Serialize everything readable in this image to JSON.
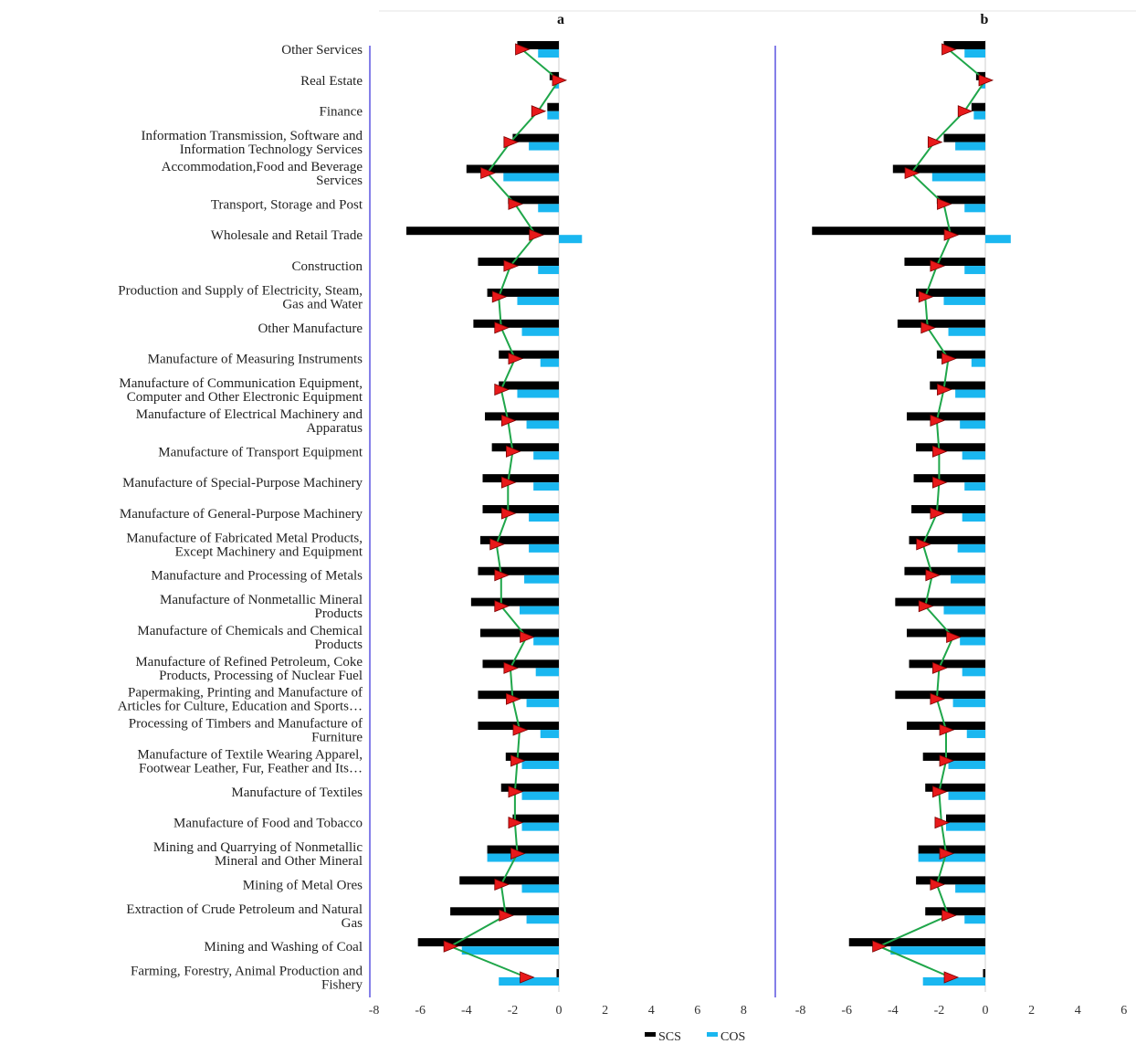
{
  "chart_data": {
    "type": "bar",
    "orientation": "horizontal",
    "categories": [
      "Other Services",
      "Real Estate",
      "Finance",
      "Information Transmission, Software and Information Technology Services",
      "Accommodation,Food and Beverage Services",
      "Transport, Storage and Post",
      "Wholesale and Retail Trade",
      "Construction",
      "Production and Supply of Electricity, Steam, Gas and Water",
      "Other Manufacture",
      "Manufacture of Measuring Instruments",
      "Manufacture of Communication Equipment, Computer and Other Electronic Equipment",
      "Manufacture of Electrical Machinery and Apparatus",
      "Manufacture of Transport Equipment",
      "Manufacture of Special-Purpose Machinery",
      "Manufacture of General-Purpose Machinery",
      "Manufacture of Fabricated Metal Products, Except Machinery and Equipment",
      "Manufacture and Processing of Metals",
      "Manufacture of Nonmetallic Mineral Products",
      "Manufacture of Chemicals and Chemical Products",
      "Manufacture of Refined Petroleum, Coke Products, Processing of Nuclear Fuel",
      "Papermaking, Printing and Manufacture of Articles for Culture, Education and Sports…",
      "Processing of Timbers and Manufacture of Furniture",
      "Manufacture of Textile Wearing Apparel, Footwear Leather, Fur, Feather and Its…",
      "Manufacture of Textiles",
      "Manufacture of Food and Tobacco",
      "Mining and Quarrying of Nonmetallic Mineral and Other Mineral",
      "Mining of Metal Ores",
      "Extraction of Crude Petroleum and Natural Gas",
      "Mining and Washing of Coal",
      "Farming, Forestry, Animal Production and Fishery"
    ],
    "category_lines": [
      [
        "Other Services"
      ],
      [
        "Real Estate"
      ],
      [
        "Finance"
      ],
      [
        "Information Transmission, Software and",
        "Information Technology Services"
      ],
      [
        "Accommodation,Food and Beverage",
        "Services"
      ],
      [
        "Transport, Storage and Post"
      ],
      [
        "Wholesale and Retail Trade"
      ],
      [
        "Construction"
      ],
      [
        "Production and Supply of Electricity, Steam,",
        "Gas and Water"
      ],
      [
        "Other Manufacture"
      ],
      [
        "Manufacture of Measuring Instruments"
      ],
      [
        "Manufacture of Communication Equipment,",
        "Computer and Other Electronic Equipment"
      ],
      [
        "Manufacture of Electrical Machinery and",
        "Apparatus"
      ],
      [
        "Manufacture of Transport Equipment"
      ],
      [
        "Manufacture of Special-Purpose Machinery"
      ],
      [
        "Manufacture of General-Purpose Machinery"
      ],
      [
        "Manufacture of Fabricated Metal Products,",
        "Except Machinery and Equipment"
      ],
      [
        "Manufacture and Processing of Metals"
      ],
      [
        "Manufacture of Nonmetallic Mineral",
        "Products"
      ],
      [
        "Manufacture of Chemicals and Chemical",
        "Products"
      ],
      [
        "Manufacture of Refined Petroleum, Coke",
        "Products, Processing of Nuclear Fuel"
      ],
      [
        "Papermaking, Printing and Manufacture of",
        "Articles for Culture, Education and Sports…"
      ],
      [
        "Processing of Timbers and Manufacture of",
        "Furniture"
      ],
      [
        "Manufacture of Textile Wearing Apparel,",
        "Footwear Leather, Fur, Feather and Its…"
      ],
      [
        "Manufacture of Textiles"
      ],
      [
        "Manufacture of Food and Tobacco"
      ],
      [
        "Mining and Quarrying of Nonmetallic",
        "Mineral and Other Mineral"
      ],
      [
        "Mining of Metal Ores"
      ],
      [
        "Extraction of Crude Petroleum and Natural",
        "Gas"
      ],
      [
        "Mining and Washing of Coal"
      ],
      [
        "Farming, Forestry, Animal Production and",
        "Fishery"
      ]
    ],
    "legend": [
      "SCS",
      "COS"
    ],
    "legend_position": "bottom",
    "colors": {
      "SCS": "#000000",
      "COS": "#1ab7f0",
      "line": "#1fa64a",
      "marker": "#e8191a"
    },
    "panels": [
      {
        "title": "a",
        "xlim": [
          -8,
          8
        ],
        "xticks": [
          "-8",
          "-6",
          "-4",
          "-2",
          "0",
          "2",
          "4",
          "6",
          "8"
        ],
        "xtick_values": [
          -8,
          -6,
          -4,
          -2,
          0,
          2,
          4,
          6,
          8
        ],
        "series": [
          {
            "name": "SCS",
            "values": [
              -1.8,
              -0.4,
              -0.5,
              -2.0,
              -4.0,
              -2.2,
              -6.6,
              -3.5,
              -3.1,
              -3.7,
              -2.6,
              -2.6,
              -3.2,
              -2.9,
              -3.3,
              -3.3,
              -3.4,
              -3.5,
              -3.8,
              -3.4,
              -3.3,
              -3.5,
              -3.5,
              -2.3,
              -2.5,
              -2.0,
              -3.1,
              -4.3,
              -4.7,
              -6.1,
              -0.1
            ]
          },
          {
            "name": "COS",
            "values": [
              -0.9,
              -0.2,
              -0.5,
              -1.3,
              -2.4,
              -0.9,
              1.0,
              -0.9,
              -1.8,
              -1.6,
              -0.8,
              -1.8,
              -1.4,
              -1.1,
              -1.1,
              -1.3,
              -1.3,
              -1.5,
              -1.7,
              -1.1,
              -1.0,
              -1.4,
              -0.8,
              -1.6,
              -1.6,
              -1.6,
              -3.1,
              -1.6,
              -1.4,
              -4.2,
              -2.6
            ]
          },
          {
            "name": "trend",
            "values": [
              -1.6,
              0.0,
              -0.9,
              -2.1,
              -3.1,
              -1.9,
              -1.0,
              -2.1,
              -2.6,
              -2.5,
              -1.9,
              -2.5,
              -2.2,
              -2.0,
              -2.2,
              -2.2,
              -2.7,
              -2.5,
              -2.5,
              -1.4,
              -2.1,
              -2.0,
              -1.7,
              -1.8,
              -1.9,
              -1.9,
              -1.8,
              -2.5,
              -2.3,
              -4.7,
              -1.4
            ]
          }
        ]
      },
      {
        "title": "b",
        "xlim": [
          -8,
          6
        ],
        "xticks": [
          "-8",
          "-6",
          "-4",
          "-2",
          "0",
          "2",
          "4",
          "6"
        ],
        "xtick_values": [
          -8,
          -6,
          -4,
          -2,
          0,
          2,
          4,
          6
        ],
        "series": [
          {
            "name": "SCS",
            "values": [
              -1.8,
              -0.4,
              -0.6,
              -1.8,
              -4.0,
              -2.1,
              -7.5,
              -3.5,
              -3.0,
              -3.8,
              -2.1,
              -2.4,
              -3.4,
              -3.0,
              -3.1,
              -3.2,
              -3.3,
              -3.5,
              -3.9,
              -3.4,
              -3.3,
              -3.9,
              -3.4,
              -2.7,
              -2.6,
              -1.7,
              -2.9,
              -3.0,
              -2.6,
              -5.9,
              -0.1
            ]
          },
          {
            "name": "COS",
            "values": [
              -0.9,
              -0.2,
              -0.5,
              -1.3,
              -2.3,
              -0.9,
              1.1,
              -0.9,
              -1.8,
              -1.6,
              -0.6,
              -1.3,
              -1.1,
              -1.0,
              -0.9,
              -1.0,
              -1.2,
              -1.5,
              -1.8,
              -1.1,
              -1.0,
              -1.4,
              -0.8,
              -1.6,
              -1.6,
              -1.7,
              -2.9,
              -1.3,
              -0.9,
              -4.1,
              -2.7
            ]
          },
          {
            "name": "trend",
            "values": [
              -1.6,
              0.0,
              -0.9,
              -2.2,
              -3.2,
              -1.8,
              -1.5,
              -2.1,
              -2.6,
              -2.5,
              -1.6,
              -1.8,
              -2.1,
              -2.0,
              -2.0,
              -2.1,
              -2.7,
              -2.3,
              -2.6,
              -1.4,
              -2.0,
              -2.1,
              -1.7,
              -1.7,
              -2.0,
              -1.9,
              -1.7,
              -2.1,
              -1.6,
              -4.6,
              -1.5
            ]
          }
        ]
      }
    ]
  }
}
